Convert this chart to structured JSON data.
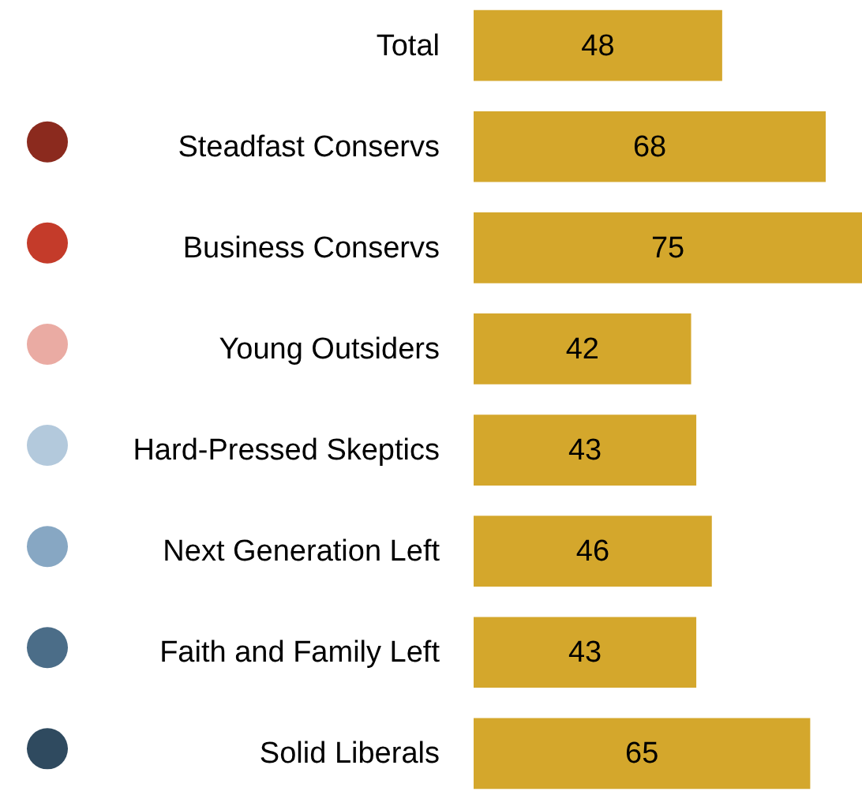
{
  "chart_data": {
    "type": "bar",
    "orientation": "horizontal",
    "data_labels": true,
    "color": "#d4a72c",
    "categories": [
      "Total",
      null,
      "Steadfast Conservs",
      "Business Conservs",
      "Young Outsiders",
      "Hard-Pressed Skeptics",
      "Next Generation Left",
      "Faith and Family Left",
      "Solid Liberals"
    ],
    "values": [
      48,
      null,
      68,
      75,
      42,
      43,
      46,
      43,
      65
    ]
  }
}
